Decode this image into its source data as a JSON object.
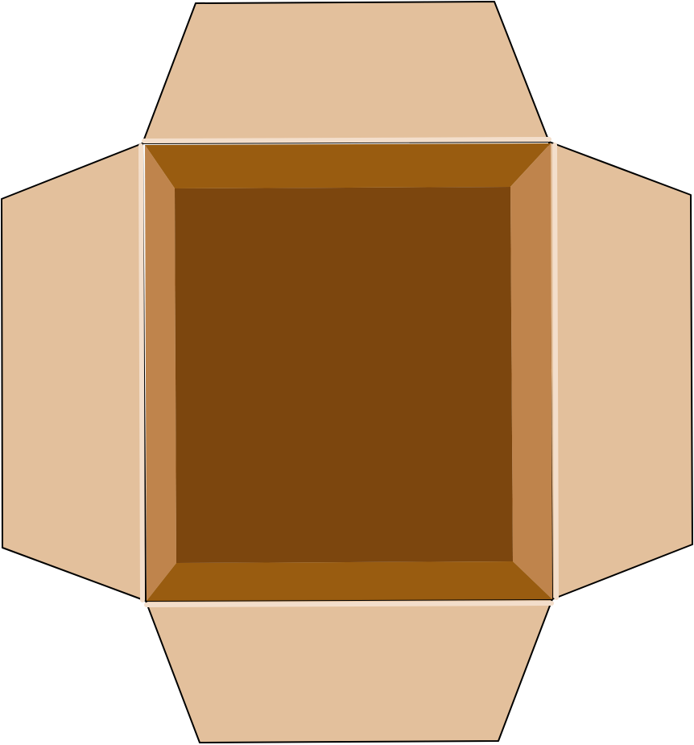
{
  "illustration": {
    "subject": "open-cardboard-box-top-view",
    "colors": {
      "flap": "#E3C09C",
      "outline": "#000000",
      "fold_highlight": "#F3DECB",
      "inner_wall_horizontal": "#995C10",
      "inner_wall_vertical": "#BF844C",
      "box_floor": "#7C460E"
    },
    "parts": {
      "flaps": [
        "top",
        "right",
        "bottom",
        "left"
      ],
      "inner_walls": [
        "top",
        "right",
        "bottom",
        "left"
      ]
    }
  }
}
